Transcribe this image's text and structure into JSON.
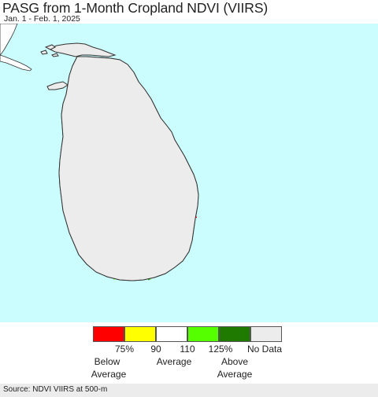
{
  "header": {
    "title": "PASG from 1-Month Cropland NDVI (VIIRS)",
    "date_range": "Jan. 1 - Feb. 1, 2025"
  },
  "map": {
    "ocean_color": "#ccfdfe",
    "land_color": "#ececec",
    "neighbor_land_color": "#fdfdfd",
    "boundary_color": "#8a8a8a",
    "coast_color": "#333333"
  },
  "legend": {
    "colors": [
      "#ff0000",
      "#ffff00",
      "#ffffff",
      "#55ff00",
      "#1e7a00",
      "#ececec"
    ],
    "ticks": [
      "75%",
      "90",
      "110",
      "125%",
      "No Data"
    ],
    "captions": {
      "below_1": "Below",
      "below_2": "Average",
      "average": "Average",
      "above_1": "Above",
      "above_2": "Average"
    }
  },
  "footer": {
    "source": "Source: NDVI VIIRS at 500-m"
  }
}
